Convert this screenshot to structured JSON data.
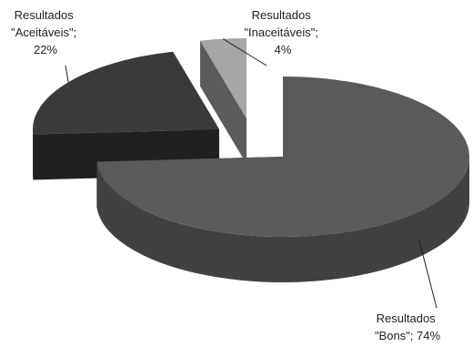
{
  "chart_data": {
    "type": "pie",
    "style": "3d-exploded",
    "title": "",
    "slices": [
      {
        "label_lines": [
          "Resultados",
          "\"Bons\"; 74%"
        ],
        "value": 74,
        "color": "#5a5a5a"
      },
      {
        "label_lines": [
          "Resultados",
          "\"Aceitáveis\";",
          "22%"
        ],
        "value": 22,
        "color": "#3a3a3a"
      },
      {
        "label_lines": [
          "Resultados",
          "\"Inaceitáveis\";",
          "4%"
        ],
        "value": 4,
        "color": "#a6a6a6"
      }
    ],
    "legend": "none"
  }
}
